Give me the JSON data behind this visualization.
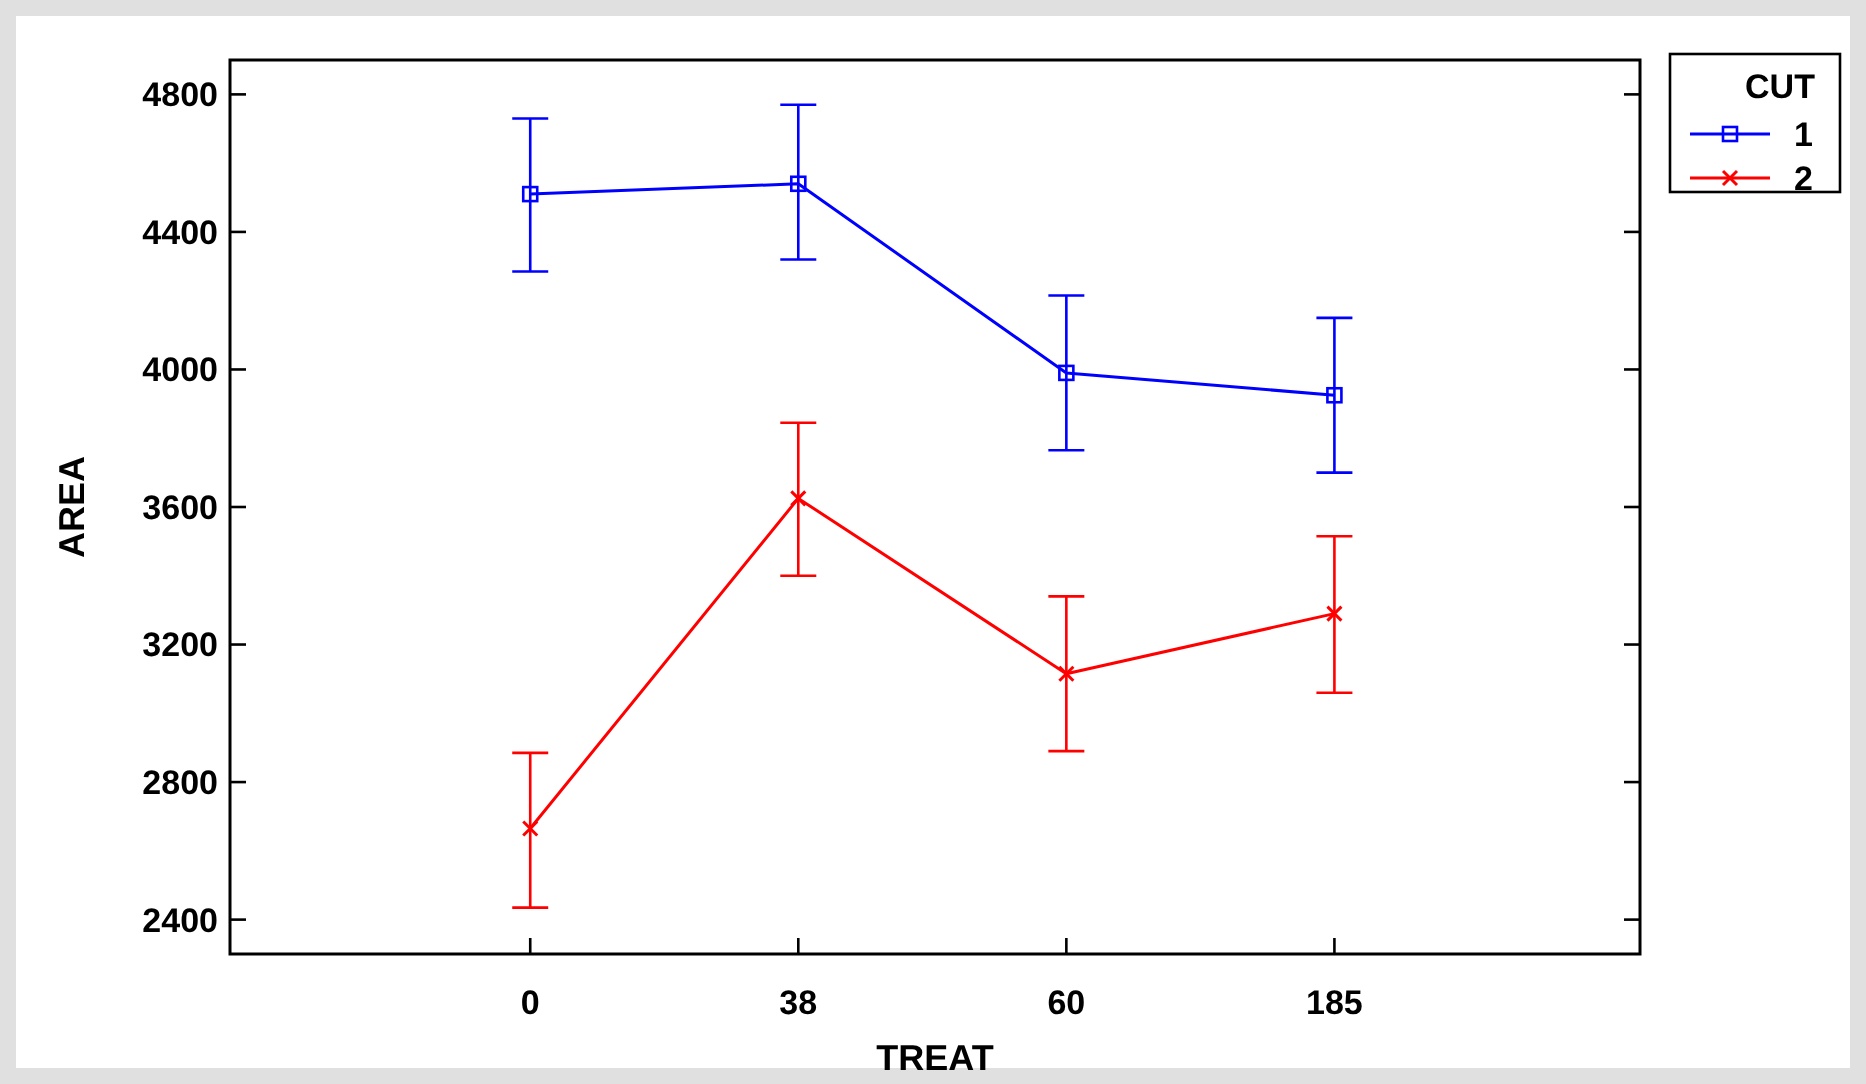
{
  "chart_data": {
    "type": "line",
    "xlabel": "TREAT",
    "ylabel": "AREA",
    "legend_title": "CUT",
    "legend": "top right",
    "grid": false,
    "categories": [
      "0",
      "38",
      "60",
      "185"
    ],
    "ylim": [
      2300,
      4900
    ],
    "yticks": [
      2400,
      2800,
      3200,
      3600,
      4000,
      4400,
      4800
    ],
    "series": [
      {
        "name": "1",
        "color": "#0000ff",
        "marker": "square",
        "values": [
          4510,
          4540,
          3990,
          3925
        ],
        "errors": [
          [
            4285,
            4730
          ],
          [
            4320,
            4770
          ],
          [
            3765,
            4215
          ],
          [
            3700,
            4150
          ]
        ]
      },
      {
        "name": "2",
        "color": "#ff0000",
        "marker": "cross",
        "values": [
          2665,
          3625,
          3115,
          3290
        ],
        "errors": [
          [
            2435,
            2885
          ],
          [
            3400,
            3845
          ],
          [
            2890,
            3340
          ],
          [
            3060,
            3515
          ]
        ]
      }
    ]
  }
}
